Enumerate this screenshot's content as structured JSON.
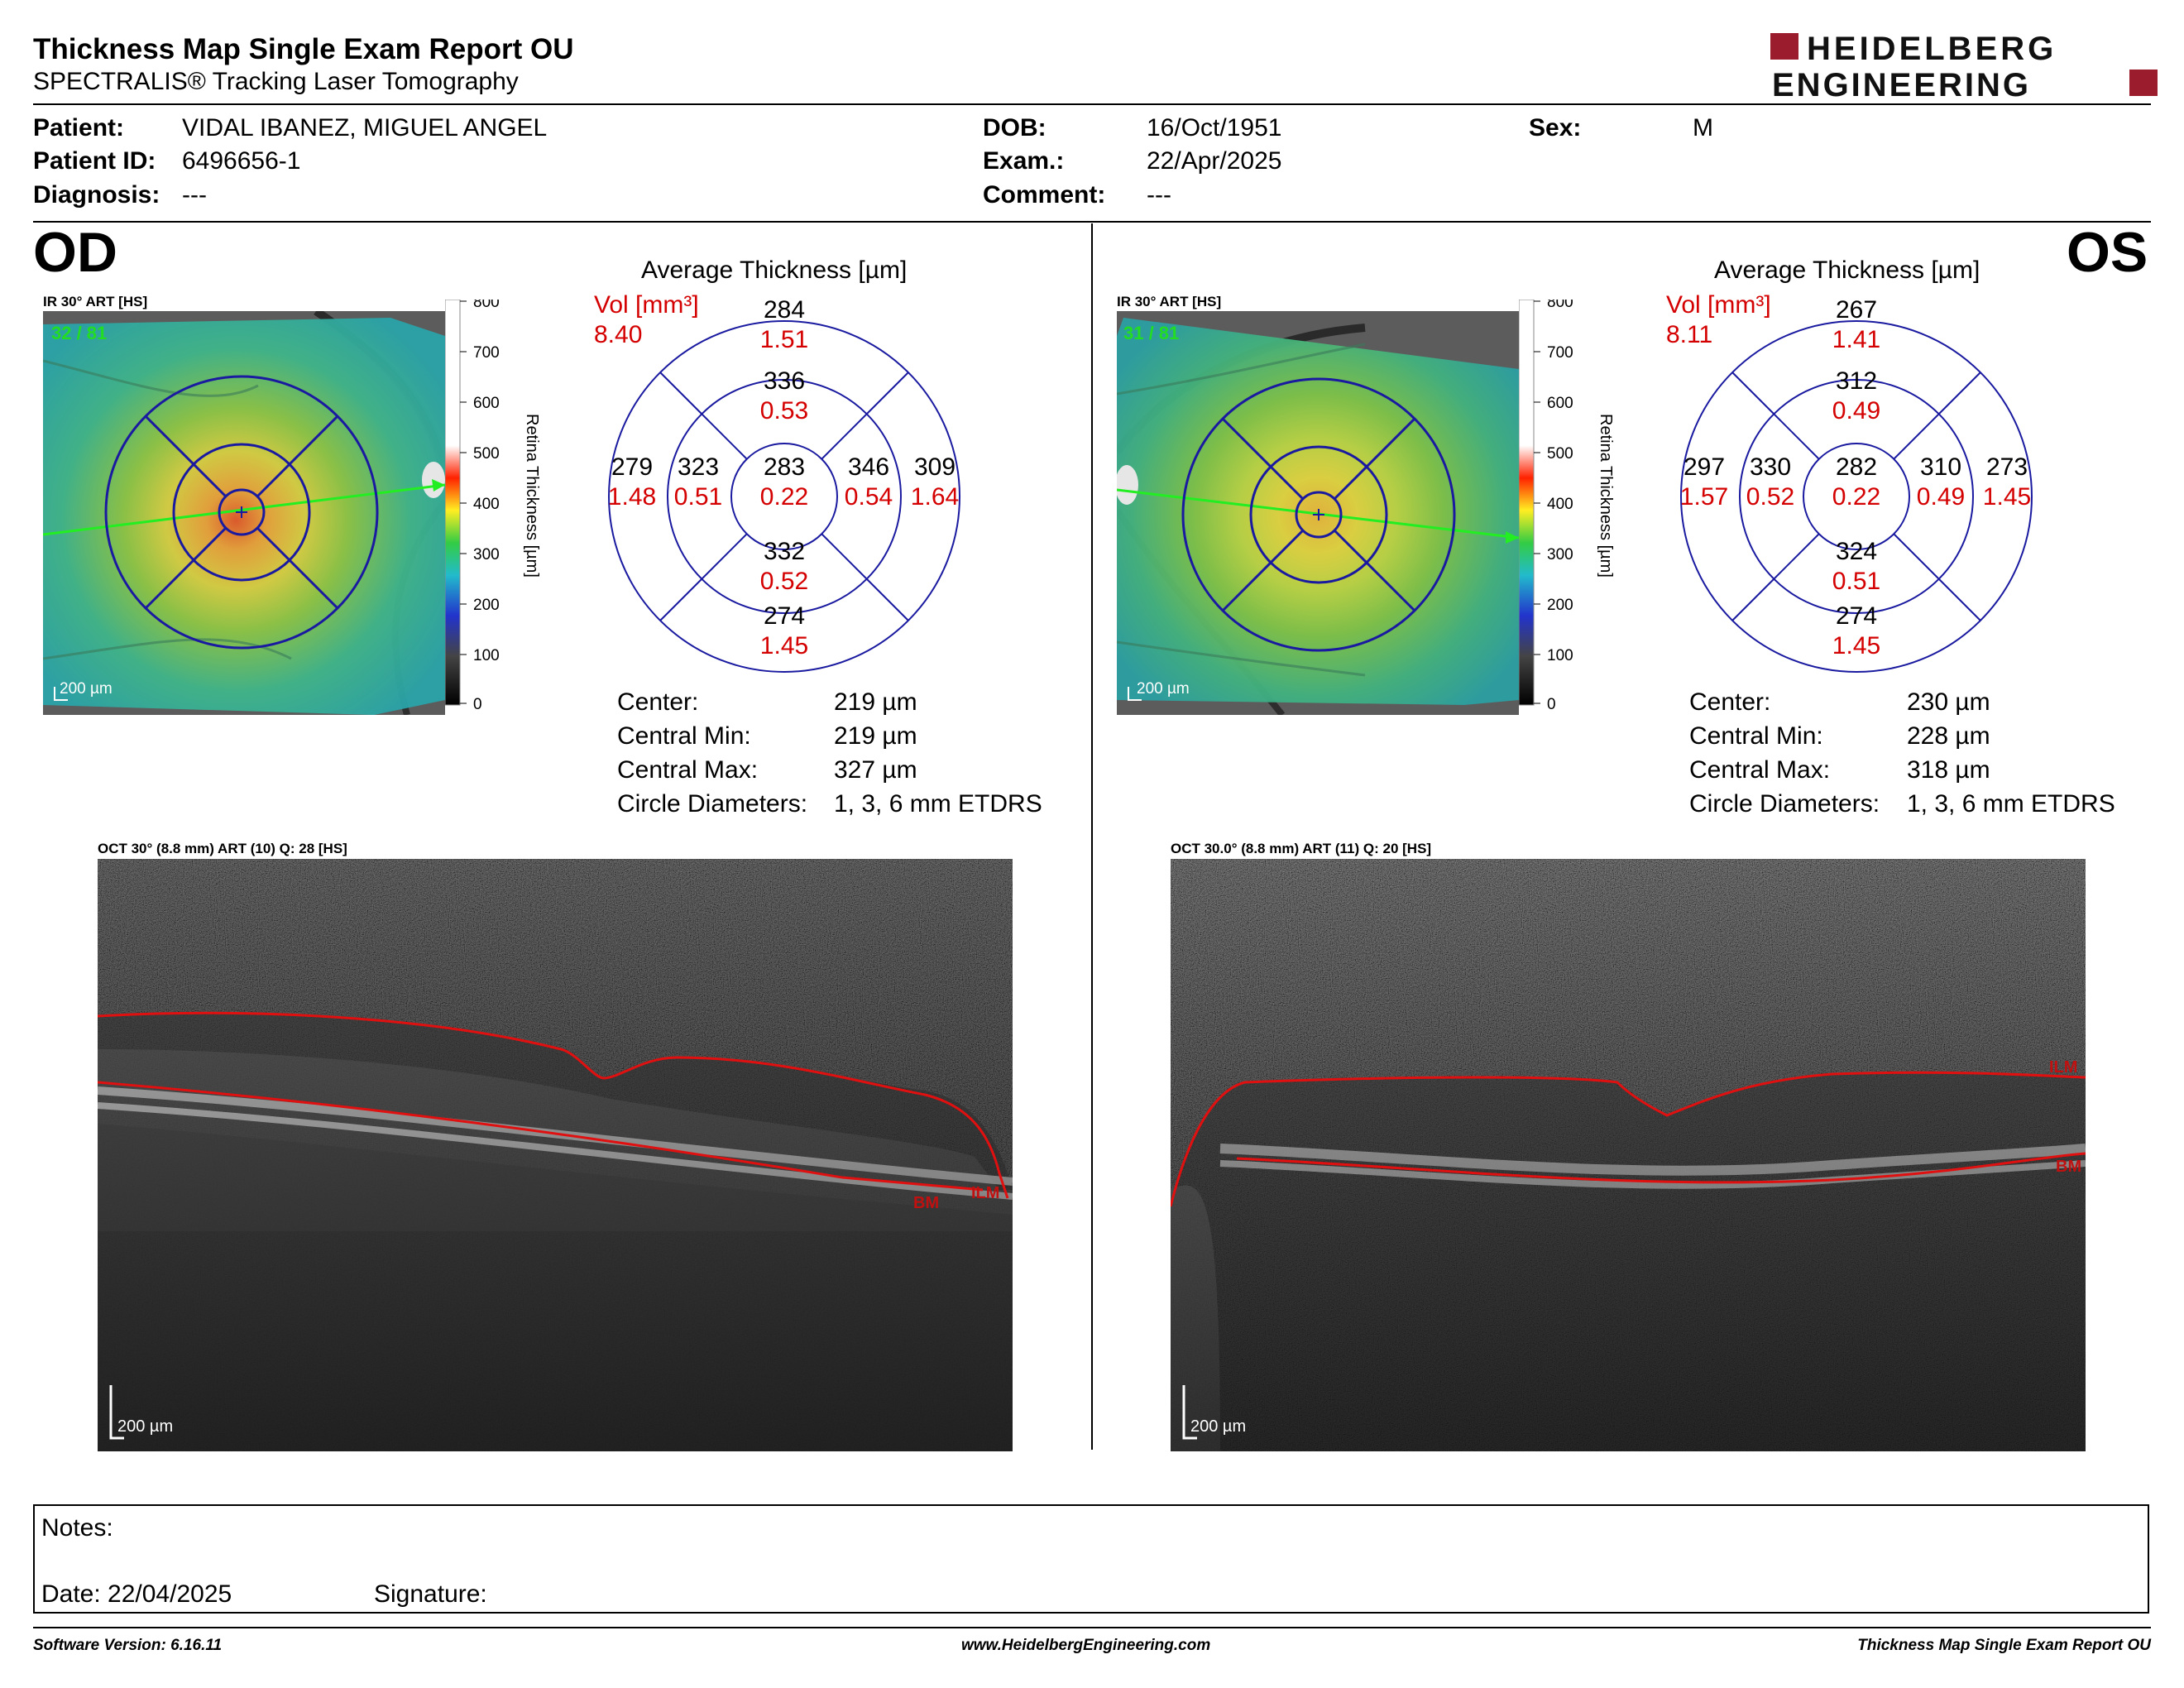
{
  "header": {
    "title": "Thickness Map Single Exam Report OU",
    "subtitle": "SPECTRALIS® Tracking Laser Tomography",
    "logo_top": "HEIDELBERG",
    "logo_bottom": "ENGINEERING",
    "logo_color": "#9b1c2c"
  },
  "patient": {
    "patient_label": "Patient:",
    "patient_value": "VIDAL IBANEZ, MIGUEL ANGEL",
    "id_label": "Patient ID:",
    "id_value": "6496656-1",
    "diagnosis_label": "Diagnosis:",
    "diagnosis_value": "---",
    "dob_label": "DOB:",
    "dob_value": "16/Oct/1951",
    "exam_label": "Exam.:",
    "exam_value": "22/Apr/2025",
    "comment_label": "Comment:",
    "comment_value": "---",
    "sex_label": "Sex:",
    "sex_value": "M"
  },
  "scale": {
    "ticks": [
      "800",
      "700",
      "600",
      "500",
      "400",
      "300",
      "200",
      "100",
      "0"
    ],
    "axis_label": "Retina  Thickness [µm]",
    "scalebar": "200 µm"
  },
  "od": {
    "eye": "OD",
    "ir_label": "IR 30° ART [HS]",
    "quality": "32 / 81",
    "grid_title": "Average Thickness [µm]",
    "vol_label": "Vol [mm³]",
    "vol_value": "8.40",
    "sectors": {
      "outer_top": {
        "t": "284",
        "v": "1.51"
      },
      "inner_top": {
        "t": "336",
        "v": "0.53"
      },
      "outer_left": {
        "t": "279",
        "v": "1.48"
      },
      "inner_left": {
        "t": "323",
        "v": "0.51"
      },
      "center": {
        "t": "283",
        "v": "0.22"
      },
      "inner_right": {
        "t": "346",
        "v": "0.54"
      },
      "outer_right": {
        "t": "309",
        "v": "1.64"
      },
      "inner_bottom": {
        "t": "332",
        "v": "0.52"
      },
      "outer_bottom": {
        "t": "274",
        "v": "1.45"
      }
    },
    "stats": [
      {
        "label": "Center:",
        "value": "219 µm"
      },
      {
        "label": "Central Min:",
        "value": "219 µm"
      },
      {
        "label": "Central Max:",
        "value": "327 µm"
      },
      {
        "label": "Circle Diameters:",
        "value": "1, 3, 6 mm ETDRS"
      }
    ],
    "oct_label": "OCT 30° (8.8 mm) ART (10) Q: 28 [HS]",
    "ilm": "ILM",
    "bm": "BM"
  },
  "os": {
    "eye": "OS",
    "ir_label": "IR 30° ART [HS]",
    "quality": "31 / 81",
    "grid_title": "Average Thickness [µm]",
    "vol_label": "Vol [mm³]",
    "vol_value": "8.11",
    "sectors": {
      "outer_top": {
        "t": "267",
        "v": "1.41"
      },
      "inner_top": {
        "t": "312",
        "v": "0.49"
      },
      "outer_left": {
        "t": "297",
        "v": "1.57"
      },
      "inner_left": {
        "t": "330",
        "v": "0.52"
      },
      "center": {
        "t": "282",
        "v": "0.22"
      },
      "inner_right": {
        "t": "310",
        "v": "0.49"
      },
      "outer_right": {
        "t": "273",
        "v": "1.45"
      },
      "inner_bottom": {
        "t": "324",
        "v": "0.51"
      },
      "outer_bottom": {
        "t": "274",
        "v": "1.45"
      }
    },
    "stats": [
      {
        "label": "Center:",
        "value": "230 µm"
      },
      {
        "label": "Central Min:",
        "value": "228 µm"
      },
      {
        "label": "Central Max:",
        "value": "318 µm"
      },
      {
        "label": "Circle Diameters:",
        "value": "1, 3, 6 mm ETDRS"
      }
    ],
    "oct_label": "OCT 30.0° (8.8 mm) ART (11) Q: 20 [HS]",
    "ilm": "ILM",
    "bm": "BM"
  },
  "notes": {
    "notes_label": "Notes:",
    "date_label": "Date: 22/04/2025",
    "signature_label": "Signature:"
  },
  "footer": {
    "software": "Software Version: 6.16.11",
    "website": "www.HeidelbergEngineering.com",
    "report": "Thickness Map Single Exam Report OU"
  },
  "colors": {
    "grid_blue": "#1a1aa0",
    "value_red": "#d40000",
    "quality_green": "#22dd22",
    "segmentation_red": "#e01010"
  }
}
